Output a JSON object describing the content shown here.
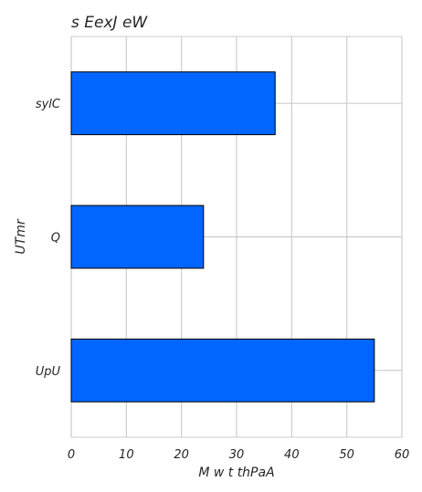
{
  "chart_data": {
    "type": "bar",
    "orientation": "horizontal",
    "title": "s   EexJ eW",
    "xlabel": "M w  t thPaA",
    "ylabel": "UTmr",
    "categories": [
      "sylC",
      "Q",
      "UpU"
    ],
    "values": [
      37,
      24,
      55
    ],
    "xlim": [
      0,
      60
    ],
    "xticks": [
      "0",
      "10",
      "20",
      "30",
      "40",
      "50",
      "60"
    ],
    "grid": true,
    "bar_color": "#0066ff",
    "bar_edge_color": "#000000",
    "grid_color": "#cccccc"
  }
}
